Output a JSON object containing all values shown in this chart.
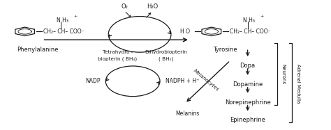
{
  "text_color": "#1a1a1a",
  "arrow_color": "#1a1a1a",
  "line_color": "#1a1a1a",
  "phenylalanine_label": "Phenylalanine",
  "tyrosine_label": "Tyrosine",
  "o2_label": "O₂",
  "h2o_label": "H₂O",
  "tetrahydro_line1": "Tetrahydro -",
  "tetrahydro_line2": "biopterin ( BH₄)",
  "dihydro_line1": "Dihydrobiopterin",
  "dihydro_line2": "( BH₂)",
  "nadp_label": "NADP",
  "nadph_label": "NADPH + H⁺",
  "melanins_label": "Melanins",
  "melanocytes_label": "Melanocytes",
  "dopa_label": "Dopa",
  "dopamine_label": "Dopamine",
  "norepinephrine_label": "Norepinephrine",
  "epinephrine_label": "Epinephrine",
  "neurons_label": "Neurons",
  "adrenal_label": "Adrenal Medulla",
  "phe_nh3": "N H₃",
  "phe_chain": "CH₂– CH– COO⁻",
  "tyr_nh3": "N H₃",
  "tyr_chain": "CH₂– CH– COO⁻",
  "tyr_ho": "H O",
  "plus_sign": "+",
  "figw": 4.74,
  "figh": 1.87,
  "dpi": 100
}
